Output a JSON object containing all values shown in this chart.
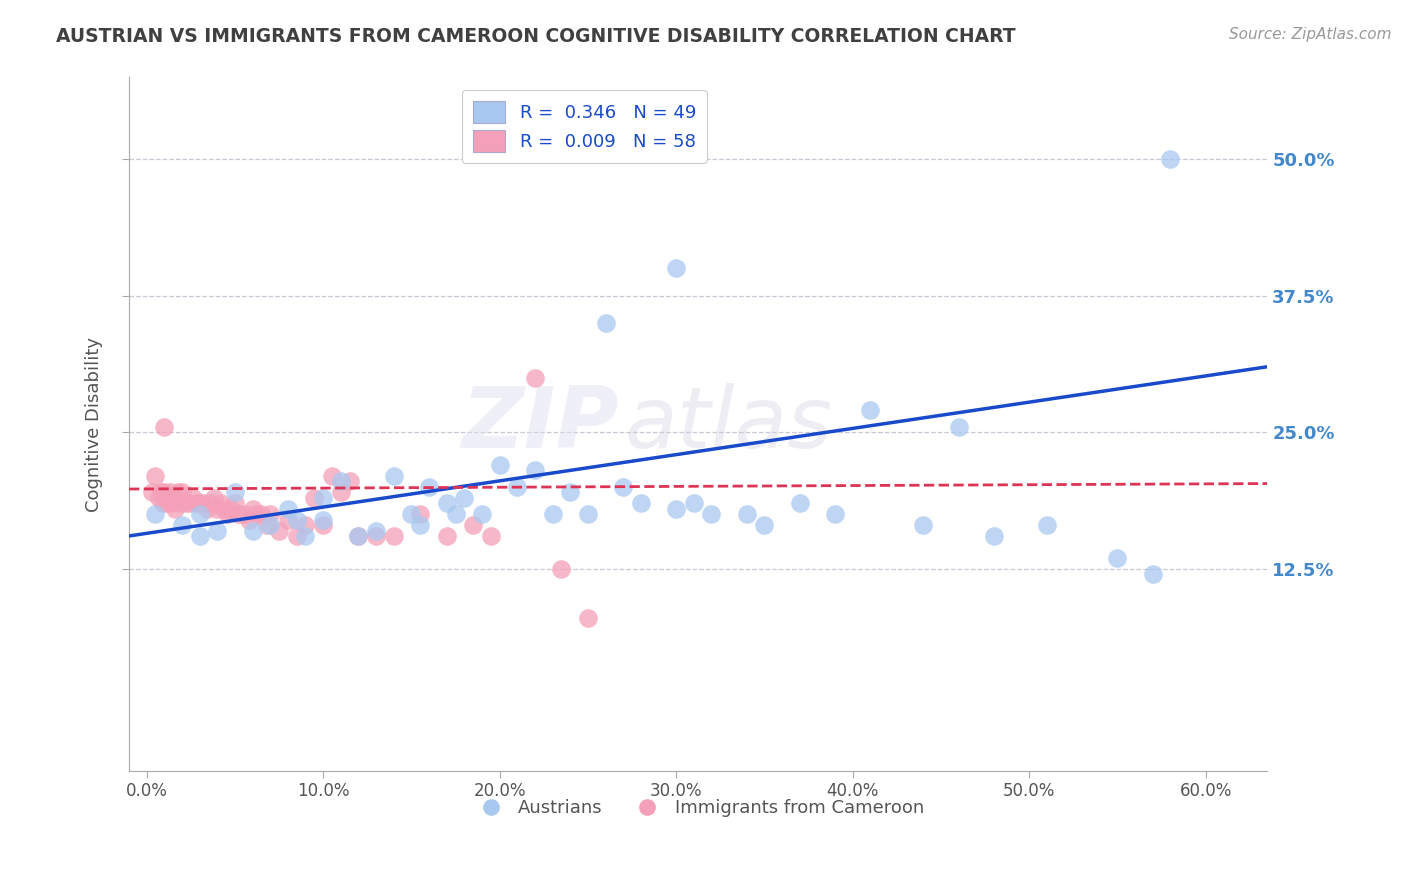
{
  "title": "AUSTRIAN VS IMMIGRANTS FROM CAMEROON COGNITIVE DISABILITY CORRELATION CHART",
  "source": "Source: ZipAtlas.com",
  "ylabel": "Cognitive Disability",
  "xlabel_ticks": [
    "0.0%",
    "10.0%",
    "20.0%",
    "30.0%",
    "40.0%",
    "50.0%",
    "60.0%"
  ],
  "xlabel_vals": [
    0.0,
    0.1,
    0.2,
    0.3,
    0.4,
    0.5,
    0.6
  ],
  "ylabel_ticks": [
    "12.5%",
    "25.0%",
    "37.5%",
    "50.0%"
  ],
  "ylabel_vals": [
    0.125,
    0.25,
    0.375,
    0.5
  ],
  "xlim": [
    -0.01,
    0.635
  ],
  "ylim": [
    -0.06,
    0.575
  ],
  "legend_blue_label": "R =  0.346   N = 49",
  "legend_pink_label": "R =  0.009   N = 58",
  "legend_austrians": "Austrians",
  "legend_cameroon": "Immigrants from Cameroon",
  "blue_color": "#A8C8F0",
  "pink_color": "#F4A0B8",
  "blue_line_color": "#1A4ACC",
  "pink_line_color": "#DD3355",
  "watermark_zip": "ZIP",
  "watermark_atlas": "atlas",
  "grid_color": "#BBBBCC",
  "title_color": "#404040",
  "label_color": "#555555",
  "right_tick_color": "#4488CC",
  "blue_scatter_x": [
    0.005,
    0.02,
    0.03,
    0.03,
    0.04,
    0.05,
    0.06,
    0.07,
    0.08,
    0.085,
    0.09,
    0.1,
    0.1,
    0.11,
    0.12,
    0.13,
    0.14,
    0.15,
    0.155,
    0.16,
    0.17,
    0.175,
    0.18,
    0.19,
    0.2,
    0.21,
    0.22,
    0.23,
    0.24,
    0.25,
    0.26,
    0.27,
    0.28,
    0.3,
    0.31,
    0.32,
    0.34,
    0.35,
    0.37,
    0.39,
    0.41,
    0.44,
    0.46,
    0.48,
    0.51,
    0.55,
    0.57,
    0.3,
    0.58
  ],
  "blue_scatter_y": [
    0.175,
    0.165,
    0.155,
    0.175,
    0.16,
    0.195,
    0.16,
    0.165,
    0.18,
    0.17,
    0.155,
    0.19,
    0.17,
    0.205,
    0.155,
    0.16,
    0.21,
    0.175,
    0.165,
    0.2,
    0.185,
    0.175,
    0.19,
    0.175,
    0.22,
    0.2,
    0.215,
    0.175,
    0.195,
    0.175,
    0.35,
    0.2,
    0.185,
    0.18,
    0.185,
    0.175,
    0.175,
    0.165,
    0.185,
    0.175,
    0.27,
    0.165,
    0.255,
    0.155,
    0.165,
    0.135,
    0.12,
    0.4,
    0.5
  ],
  "pink_scatter_x": [
    0.003,
    0.005,
    0.007,
    0.008,
    0.009,
    0.01,
    0.011,
    0.012,
    0.013,
    0.014,
    0.015,
    0.016,
    0.018,
    0.019,
    0.02,
    0.022,
    0.024,
    0.026,
    0.028,
    0.03,
    0.032,
    0.034,
    0.036,
    0.038,
    0.04,
    0.042,
    0.044,
    0.046,
    0.048,
    0.05,
    0.052,
    0.055,
    0.058,
    0.06,
    0.062,
    0.065,
    0.068,
    0.07,
    0.075,
    0.08,
    0.085,
    0.09,
    0.095,
    0.1,
    0.105,
    0.11,
    0.115,
    0.12,
    0.13,
    0.14,
    0.155,
    0.17,
    0.185,
    0.195,
    0.22,
    0.235,
    0.25,
    0.01
  ],
  "pink_scatter_y": [
    0.195,
    0.21,
    0.19,
    0.195,
    0.185,
    0.195,
    0.19,
    0.185,
    0.195,
    0.185,
    0.19,
    0.18,
    0.195,
    0.185,
    0.195,
    0.185,
    0.185,
    0.19,
    0.185,
    0.185,
    0.185,
    0.18,
    0.185,
    0.19,
    0.18,
    0.185,
    0.18,
    0.175,
    0.18,
    0.185,
    0.175,
    0.175,
    0.17,
    0.18,
    0.175,
    0.175,
    0.165,
    0.175,
    0.16,
    0.17,
    0.155,
    0.165,
    0.19,
    0.165,
    0.21,
    0.195,
    0.205,
    0.155,
    0.155,
    0.155,
    0.175,
    0.155,
    0.165,
    0.155,
    0.3,
    0.125,
    0.08,
    0.255
  ],
  "blue_trend_x": [
    -0.01,
    0.635
  ],
  "blue_trend_y": [
    0.155,
    0.31
  ],
  "pink_trend_x": [
    -0.01,
    0.635
  ],
  "pink_trend_y": [
    0.198,
    0.203
  ]
}
